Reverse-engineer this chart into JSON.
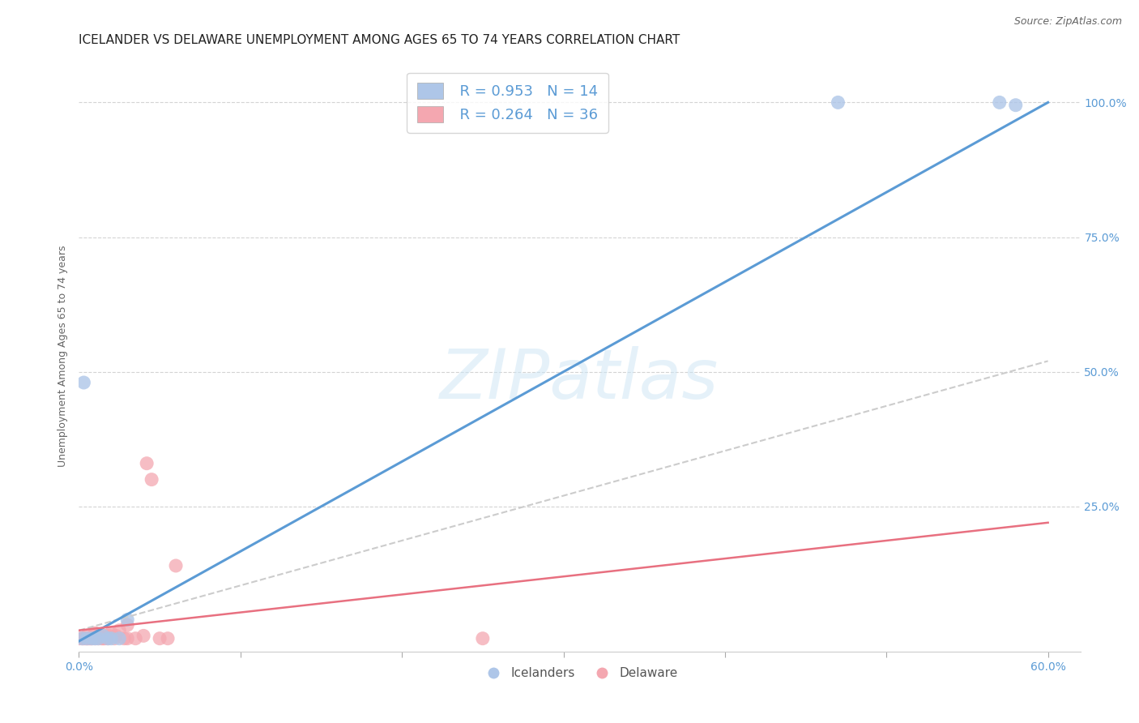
{
  "title": "ICELANDER VS DELAWARE UNEMPLOYMENT AMONG AGES 65 TO 74 YEARS CORRELATION CHART",
  "source": "Source: ZipAtlas.com",
  "ylabel": "Unemployment Among Ages 65 to 74 years",
  "y_tick_vals": [
    0.25,
    0.5,
    0.75,
    1.0
  ],
  "y_tick_labels": [
    "25.0%",
    "50.0%",
    "75.0%",
    "100.0%"
  ],
  "xlim": [
    0.0,
    0.62
  ],
  "ylim": [
    -0.02,
    1.08
  ],
  "background_color": "#ffffff",
  "grid_color": "#d0d0d0",
  "icelander_color": "#aec6e8",
  "icelander_line_color": "#5b9bd5",
  "delaware_color": "#f4a7b0",
  "delaware_line_color": "#e87080",
  "delaware_dash_color": "#cccccc",
  "legend_R_icelander": "R = 0.953",
  "legend_N_icelander": "N = 14",
  "legend_R_delaware": "R = 0.264",
  "legend_N_delaware": "N = 36",
  "watermark_text": "ZIPatlas",
  "icelander_points_x": [
    0.002,
    0.003,
    0.005,
    0.008,
    0.01,
    0.012,
    0.015,
    0.018,
    0.02,
    0.025,
    0.03,
    0.47,
    0.57,
    0.58
  ],
  "icelander_points_y": [
    0.005,
    0.48,
    0.005,
    0.005,
    0.005,
    0.005,
    0.01,
    0.005,
    0.005,
    0.005,
    0.04,
    1.0,
    1.0,
    0.995
  ],
  "delaware_points_x": [
    0.0,
    0.002,
    0.003,
    0.004,
    0.005,
    0.005,
    0.006,
    0.007,
    0.008,
    0.009,
    0.01,
    0.01,
    0.012,
    0.013,
    0.014,
    0.015,
    0.015,
    0.016,
    0.017,
    0.018,
    0.019,
    0.02,
    0.022,
    0.023,
    0.025,
    0.028,
    0.03,
    0.03,
    0.035,
    0.04,
    0.042,
    0.045,
    0.05,
    0.055,
    0.06,
    0.25
  ],
  "delaware_points_y": [
    0.005,
    0.005,
    0.005,
    0.005,
    0.005,
    0.01,
    0.005,
    0.005,
    0.005,
    0.01,
    0.005,
    0.015,
    0.005,
    0.01,
    0.005,
    0.005,
    0.01,
    0.005,
    0.01,
    0.005,
    0.01,
    0.015,
    0.005,
    0.01,
    0.02,
    0.005,
    0.005,
    0.03,
    0.005,
    0.01,
    0.33,
    0.3,
    0.005,
    0.005,
    0.14,
    0.005
  ],
  "icelander_trend_x": [
    0.0,
    0.6
  ],
  "icelander_trend_y": [
    0.0,
    1.0
  ],
  "delaware_trend_x": [
    0.0,
    0.6
  ],
  "delaware_trend_y": [
    0.02,
    0.22
  ],
  "delaware_dash_trend_x": [
    0.0,
    0.6
  ],
  "delaware_dash_trend_y": [
    0.02,
    0.52
  ],
  "title_fontsize": 11,
  "axis_label_fontsize": 9,
  "tick_fontsize": 10,
  "legend_fontsize": 13,
  "right_tick_color": "#5b9bd5"
}
